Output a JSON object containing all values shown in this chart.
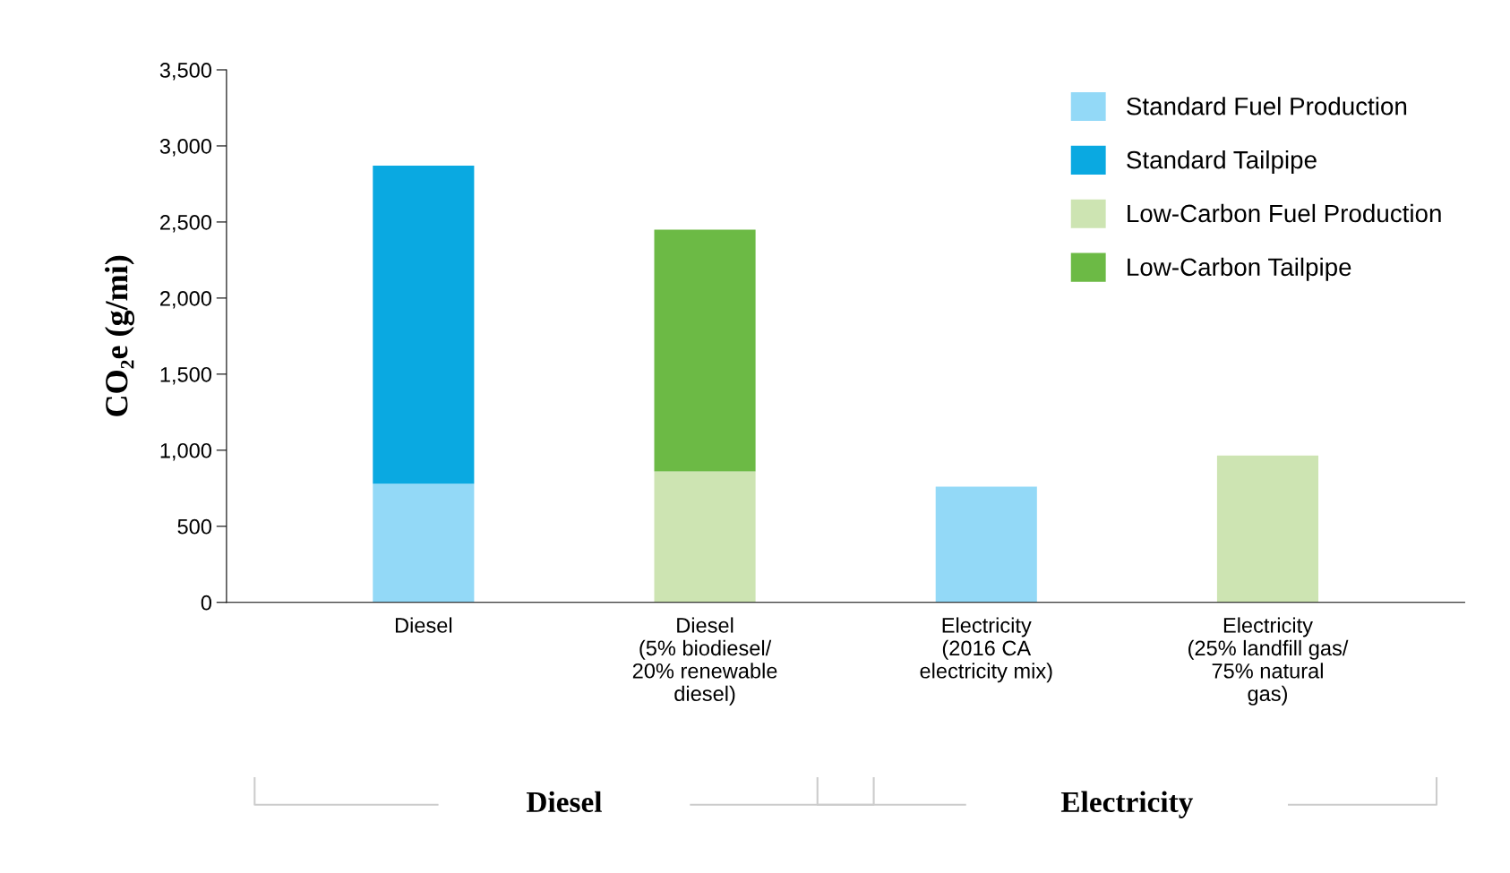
{
  "chart_data": {
    "type": "bar",
    "stacked": true,
    "ylabel": "CO₂e (g/mi)",
    "categories": [
      "Diesel",
      "Diesel\n(5% biodiesel/\n20% renewable\ndiesel)",
      "Electricity\n(2016 CA\nelectricity mix)",
      "Electricity\n(25% landfill gas/\n75% natural\ngas)"
    ],
    "series": [
      {
        "name": "Standard Fuel Production",
        "color": "#93d9f7",
        "values": [
          780,
          null,
          760,
          null
        ]
      },
      {
        "name": "Standard Tailpipe",
        "color": "#0aa9e1",
        "values": [
          2090,
          null,
          null,
          null
        ]
      },
      {
        "name": "Low-Carbon Fuel Production",
        "color": "#cde4b2",
        "values": [
          null,
          860,
          null,
          965
        ]
      },
      {
        "name": "Low-Carbon Tailpipe",
        "color": "#6cba45",
        "values": [
          null,
          1590,
          null,
          null
        ]
      }
    ],
    "ylim": [
      0,
      3500
    ],
    "yticks": [
      {
        "value": 0,
        "label": "0"
      },
      {
        "value": 500,
        "label": "500"
      },
      {
        "value": 1000,
        "label": "1,000"
      },
      {
        "value": 1500,
        "label": "1,500"
      },
      {
        "value": 2000,
        "label": "2,000"
      },
      {
        "value": 2500,
        "label": "2,500"
      },
      {
        "value": 3000,
        "label": "3,000"
      },
      {
        "value": 3500,
        "label": "3,500"
      }
    ],
    "annotations": [
      "Diesel",
      "Electricity"
    ],
    "legend": "top right",
    "grid": false
  }
}
